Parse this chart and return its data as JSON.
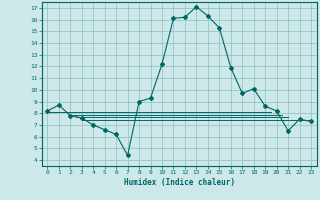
{
  "xlabel": "Humidex (Indice chaleur)",
  "bg_color": "#cce8e8",
  "grid_color": "#8fbfbf",
  "line_color": "#006666",
  "xlim": [
    -0.5,
    23.5
  ],
  "ylim": [
    3.5,
    17.5
  ],
  "xticks": [
    0,
    1,
    2,
    3,
    4,
    5,
    6,
    7,
    8,
    9,
    10,
    11,
    12,
    13,
    14,
    15,
    16,
    17,
    18,
    19,
    20,
    21,
    22,
    23
  ],
  "yticks": [
    4,
    5,
    6,
    7,
    8,
    9,
    10,
    11,
    12,
    13,
    14,
    15,
    16,
    17
  ],
  "series": [
    [
      0,
      8.2
    ],
    [
      1,
      8.7
    ],
    [
      2,
      7.8
    ],
    [
      3,
      7.6
    ],
    [
      4,
      7.0
    ],
    [
      5,
      6.6
    ],
    [
      6,
      6.2
    ],
    [
      7,
      4.4
    ],
    [
      8,
      9.0
    ],
    [
      9,
      9.3
    ],
    [
      10,
      12.2
    ],
    [
      11,
      16.1
    ],
    [
      12,
      16.2
    ],
    [
      13,
      17.1
    ],
    [
      14,
      16.3
    ],
    [
      15,
      15.3
    ],
    [
      16,
      11.9
    ],
    [
      17,
      9.7
    ],
    [
      18,
      10.1
    ],
    [
      19,
      8.6
    ],
    [
      20,
      8.2
    ],
    [
      21,
      6.5
    ],
    [
      22,
      7.5
    ],
    [
      23,
      7.3
    ]
  ],
  "flat_lines": [
    {
      "y": 8.1,
      "x_start": 0.0,
      "x_end": 19.5
    },
    {
      "y": 7.85,
      "x_start": 2.0,
      "x_end": 20.5
    },
    {
      "y": 7.65,
      "x_start": 2.5,
      "x_end": 21.0
    },
    {
      "y": 7.45,
      "x_start": 3.0,
      "x_end": 23.0
    }
  ]
}
